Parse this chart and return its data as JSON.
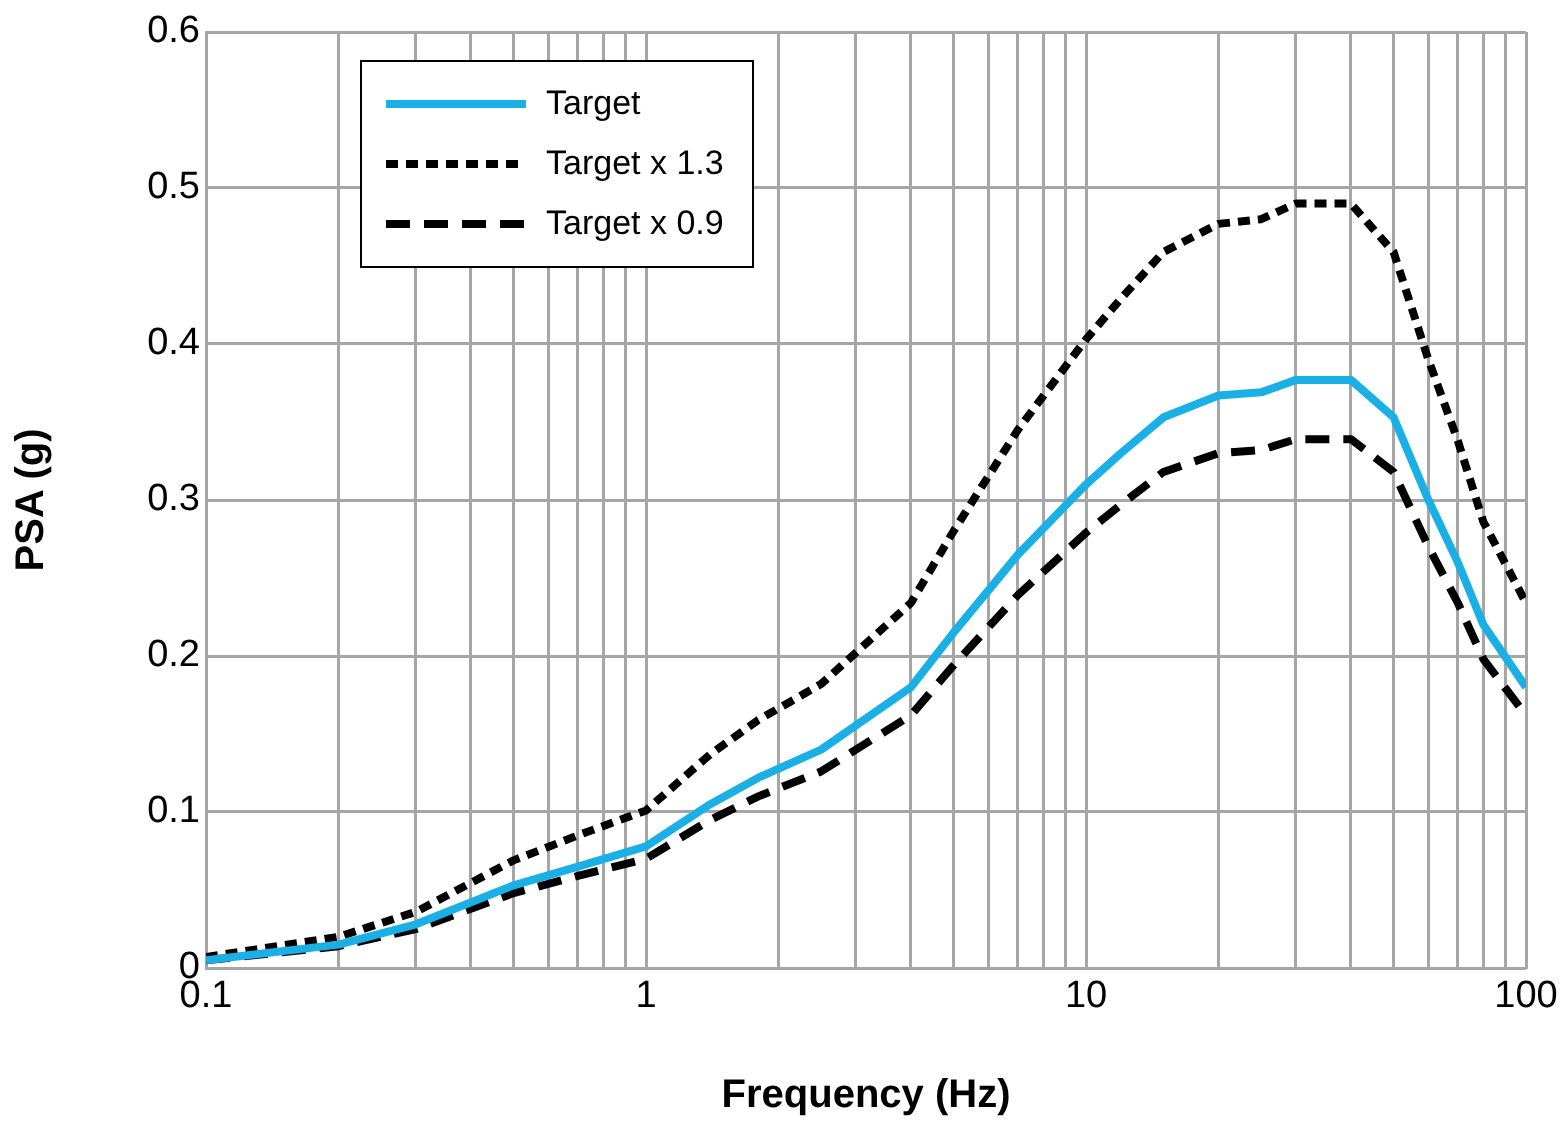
{
  "chart_data": {
    "type": "line",
    "xlabel": "Frequency (Hz)",
    "ylabel": "PSA (g)",
    "x": [
      0.1,
      0.2,
      0.3,
      0.5,
      0.7,
      1,
      1.4,
      1.8,
      2.5,
      4,
      5,
      7,
      10,
      12,
      15,
      20,
      25,
      30,
      40,
      50,
      60,
      70,
      80,
      100
    ],
    "series": [
      {
        "name": "Target",
        "color": "#1ab0e6",
        "line_style": "solid",
        "values": [
          0.005,
          0.015,
          0.028,
          0.053,
          0.065,
          0.078,
          0.105,
          0.122,
          0.14,
          0.18,
          0.215,
          0.265,
          0.31,
          0.33,
          0.353,
          0.367,
          0.369,
          0.377,
          0.377,
          0.353,
          0.3,
          0.26,
          0.22,
          0.18
        ]
      },
      {
        "name": "Target x 1.3",
        "color": "#000000",
        "line_style": "dotted",
        "values": [
          0.007,
          0.02,
          0.036,
          0.069,
          0.085,
          0.101,
          0.137,
          0.159,
          0.182,
          0.234,
          0.28,
          0.345,
          0.403,
          0.429,
          0.459,
          0.477,
          0.48,
          0.49,
          0.49,
          0.459,
          0.39,
          0.338,
          0.286,
          0.234
        ]
      },
      {
        "name": "Target x 0.9",
        "color": "#000000",
        "line_style": "dashed",
        "values": [
          0.005,
          0.014,
          0.025,
          0.048,
          0.059,
          0.07,
          0.095,
          0.11,
          0.126,
          0.162,
          0.194,
          0.239,
          0.279,
          0.297,
          0.318,
          0.33,
          0.332,
          0.339,
          0.339,
          0.318,
          0.27,
          0.234,
          0.198,
          0.162
        ]
      }
    ],
    "log": "x",
    "xlim": [
      0.1,
      100
    ],
    "xticks": [
      0.1,
      {
        "value": 0.2,
        "label": null
      },
      {
        "value": 0.3,
        "label": null
      },
      {
        "value": 0.4,
        "label": null
      },
      {
        "value": 0.5,
        "label": null
      },
      {
        "value": 0.6,
        "label": null
      },
      {
        "value": 0.7,
        "label": null
      },
      {
        "value": 0.8,
        "label": null
      },
      {
        "value": 0.9,
        "label": null
      },
      1,
      {
        "value": 2,
        "label": null
      },
      {
        "value": 3,
        "label": null
      },
      {
        "value": 4,
        "label": null
      },
      {
        "value": 5,
        "label": null
      },
      {
        "value": 6,
        "label": null
      },
      {
        "value": 7,
        "label": null
      },
      {
        "value": 8,
        "label": null
      },
      {
        "value": 9,
        "label": null
      },
      10,
      {
        "value": 20,
        "label": null
      },
      {
        "value": 30,
        "label": null
      },
      {
        "value": 40,
        "label": null
      },
      {
        "value": 50,
        "label": null
      },
      {
        "value": 60,
        "label": null
      },
      {
        "value": 70,
        "label": null
      },
      {
        "value": 80,
        "label": null
      },
      {
        "value": 90,
        "label": null
      },
      100
    ],
    "ylim": [
      0,
      0.6
    ],
    "yticks": [
      0,
      0.1,
      0.2,
      0.3,
      0.4,
      0.5,
      0.6
    ],
    "grid": true,
    "legend": "top left",
    "marker": "none"
  }
}
